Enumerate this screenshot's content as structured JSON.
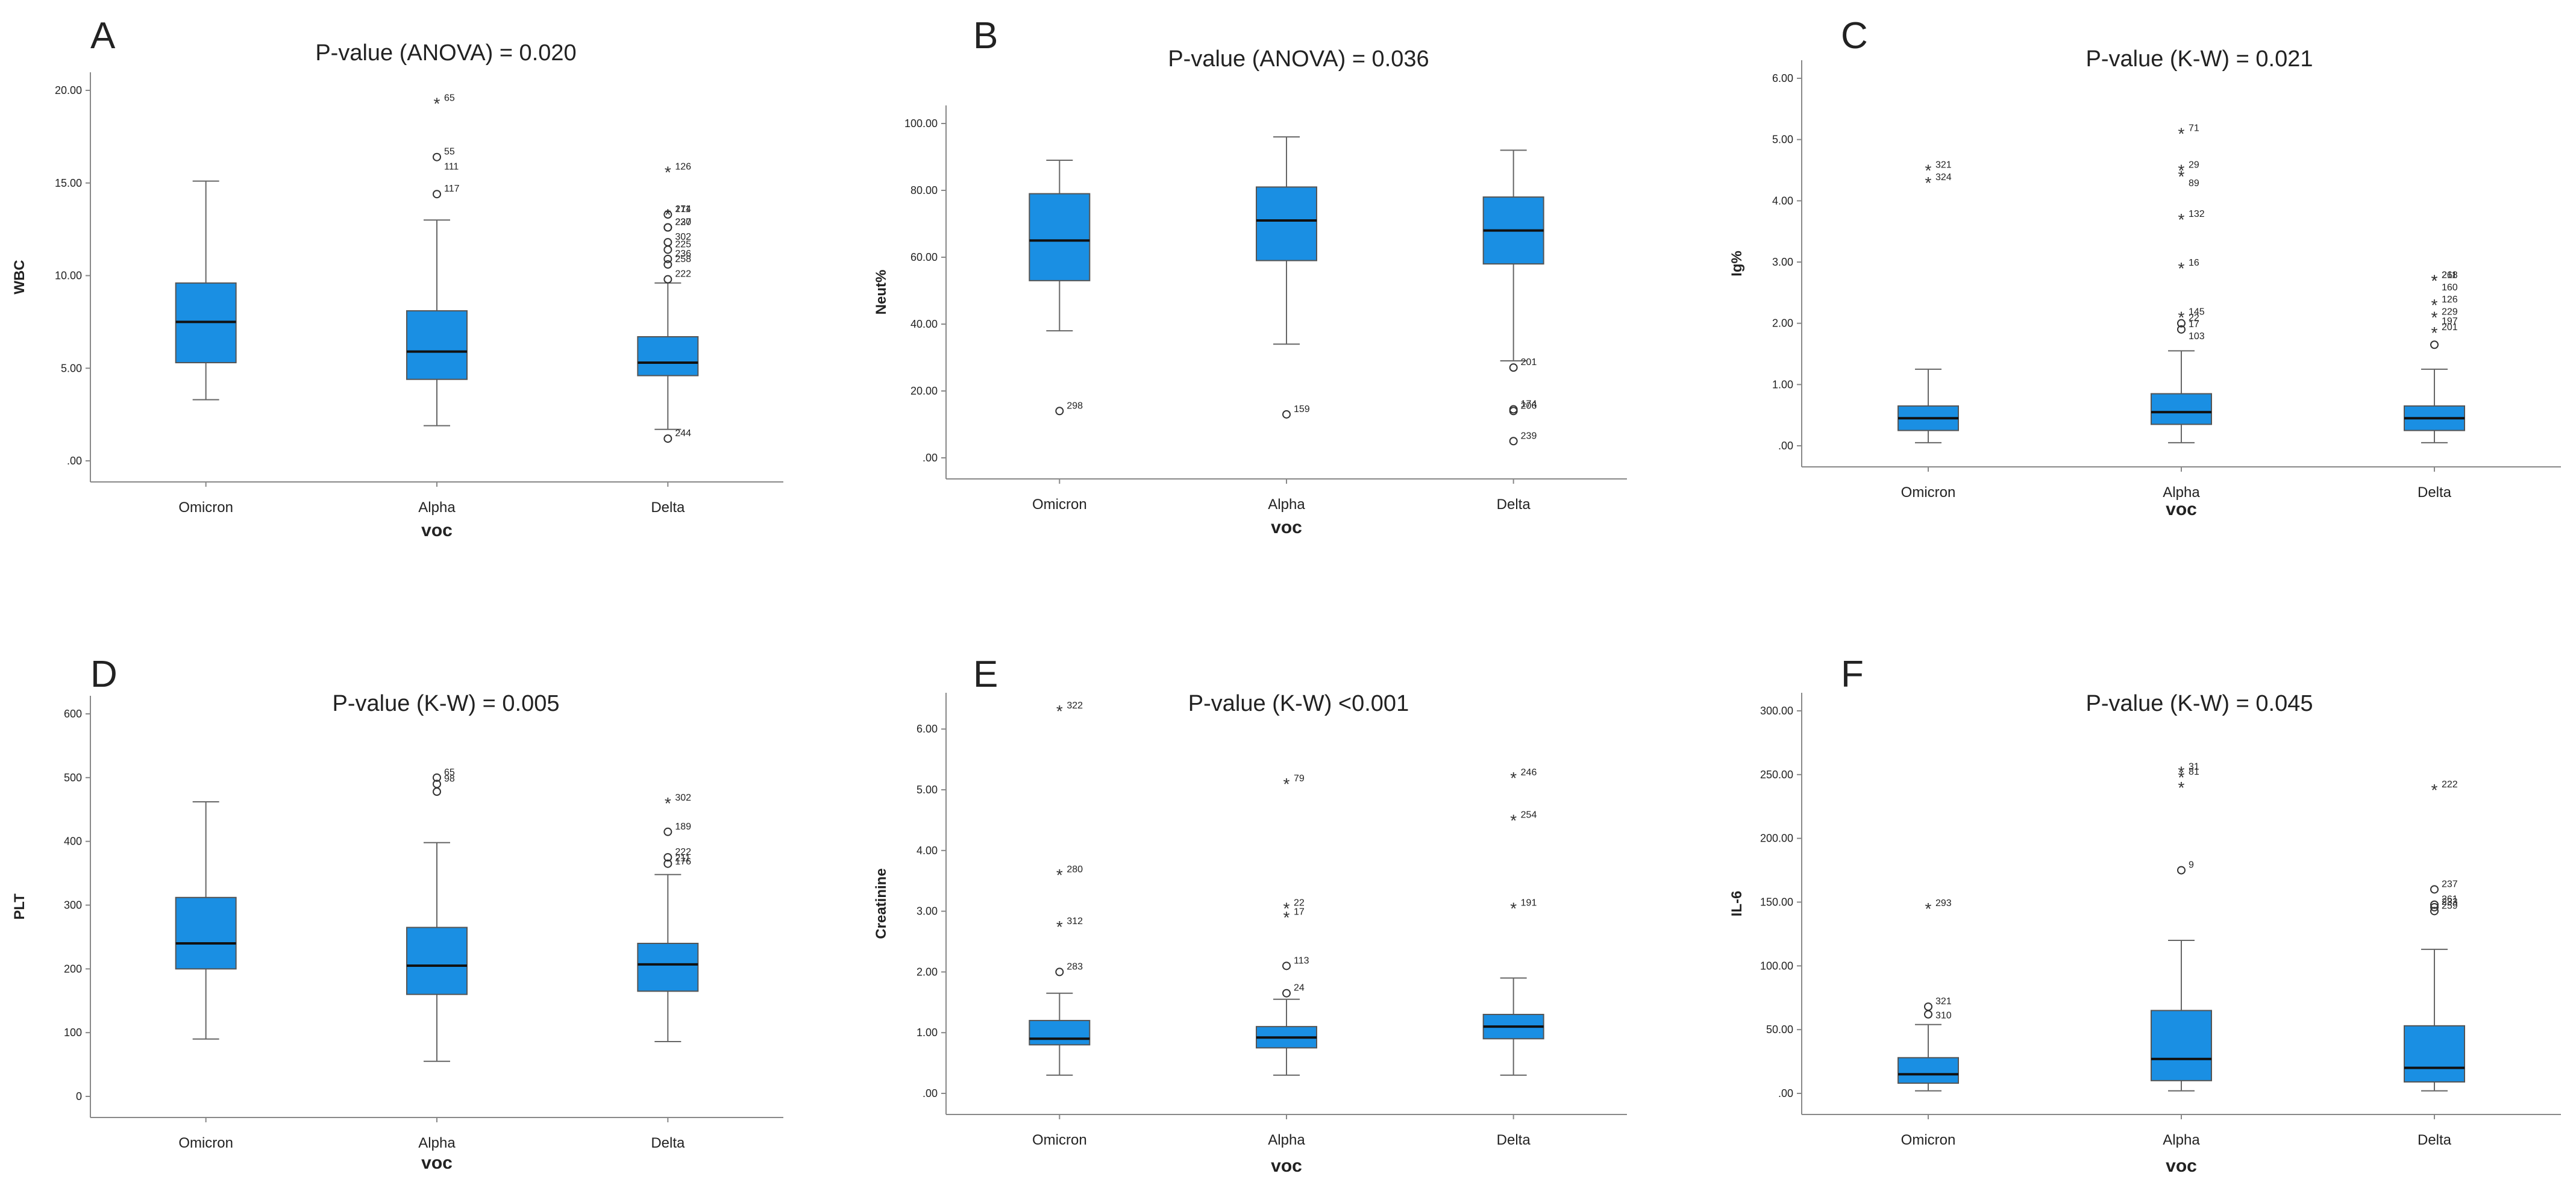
{
  "colors": {
    "box": "#1a8fe3",
    "axis": "#888888",
    "whisker": "#666666",
    "text": "#222222"
  },
  "chart_data": [
    {
      "id": "A",
      "type": "box",
      "title": "P-value (ANOVA) = 0.020",
      "xlabel": "voc",
      "ylabel": "WBC",
      "categories": [
        "Omicron",
        "Alpha",
        "Delta"
      ],
      "ylim": [
        0,
        20
      ],
      "ticks": [
        0,
        5,
        10,
        15,
        20
      ],
      "tick_labels": [
        ".00",
        "5.00",
        "10.00",
        "15.00",
        "20.00"
      ],
      "boxes": [
        {
          "low": 3.3,
          "q1": 5.3,
          "median": 7.5,
          "q3": 9.6,
          "high": 15.1
        },
        {
          "low": 1.9,
          "q1": 4.4,
          "median": 5.9,
          "q3": 8.1,
          "high": 13.0
        },
        {
          "low": 1.7,
          "q1": 4.6,
          "median": 5.3,
          "q3": 6.7,
          "high": 9.6
        }
      ],
      "outliers": [
        {
          "cat": 1,
          "value": 19.3,
          "label": "65",
          "marker": "star"
        },
        {
          "cat": 1,
          "value": 16.4,
          "label": "55",
          "marker": "circle"
        },
        {
          "cat": 1,
          "value": 15.6,
          "label": "111",
          "marker": "none"
        },
        {
          "cat": 1,
          "value": 14.4,
          "label": "117",
          "marker": "circle"
        },
        {
          "cat": 2,
          "value": 15.6,
          "label": "126",
          "marker": "star"
        },
        {
          "cat": 2,
          "value": 13.3,
          "label": "211",
          "marker": "circle"
        },
        {
          "cat": 2,
          "value": 13.3,
          "label": "174",
          "marker": "star"
        },
        {
          "cat": 2,
          "value": 12.6,
          "label": "220",
          "marker": "circle"
        },
        {
          "cat": 2,
          "value": 12.6,
          "label": "237",
          "marker": "circle"
        },
        {
          "cat": 2,
          "value": 11.8,
          "label": "302",
          "marker": "circle"
        },
        {
          "cat": 2,
          "value": 11.4,
          "label": "225",
          "marker": "circle"
        },
        {
          "cat": 2,
          "value": 10.9,
          "label": "236",
          "marker": "circle"
        },
        {
          "cat": 2,
          "value": 10.6,
          "label": "258",
          "marker": "circle"
        },
        {
          "cat": 2,
          "value": 9.8,
          "label": "222",
          "marker": "circle"
        },
        {
          "cat": 2,
          "value": 1.2,
          "label": "244",
          "marker": "circle"
        }
      ]
    },
    {
      "id": "B",
      "type": "box",
      "title": "P-value (ANOVA) = 0.036",
      "xlabel": "voc",
      "ylabel": "Neut%",
      "categories": [
        "Omicron",
        "Alpha",
        "Delta"
      ],
      "ylim": [
        0,
        100
      ],
      "ticks": [
        0,
        20,
        40,
        60,
        80,
        100
      ],
      "tick_labels": [
        ".00",
        "20.00",
        "40.00",
        "60.00",
        "80.00",
        "100.00"
      ],
      "boxes": [
        {
          "low": 38,
          "q1": 53,
          "median": 65,
          "q3": 79,
          "high": 89
        },
        {
          "low": 34,
          "q1": 59,
          "median": 71,
          "q3": 81,
          "high": 96
        },
        {
          "low": 29,
          "q1": 58,
          "median": 68,
          "q3": 78,
          "high": 92
        }
      ],
      "outliers": [
        {
          "cat": 0,
          "value": 14,
          "label": "298",
          "marker": "circle"
        },
        {
          "cat": 1,
          "value": 13,
          "label": "159",
          "marker": "circle"
        },
        {
          "cat": 2,
          "value": 27,
          "label": "201",
          "marker": "circle"
        },
        {
          "cat": 2,
          "value": 14,
          "label": "206",
          "marker": "circle"
        },
        {
          "cat": 2,
          "value": 14.5,
          "label": "174",
          "marker": "circle"
        },
        {
          "cat": 2,
          "value": 5,
          "label": "239",
          "marker": "circle"
        }
      ]
    },
    {
      "id": "C",
      "type": "box",
      "title": "P-value (K-W) = 0.021",
      "xlabel": "voc",
      "ylabel": "Ig%",
      "categories": [
        "Omicron",
        "Alpha",
        "Delta"
      ],
      "ylim": [
        0,
        6
      ],
      "ticks": [
        0,
        1,
        2,
        3,
        4,
        5,
        6
      ],
      "tick_labels": [
        ".00",
        "1.00",
        "2.00",
        "3.00",
        "4.00",
        "5.00",
        "6.00"
      ],
      "boxes": [
        {
          "low": 0.05,
          "q1": 0.25,
          "median": 0.45,
          "q3": 0.65,
          "high": 1.25
        },
        {
          "low": 0.05,
          "q1": 0.35,
          "median": 0.55,
          "q3": 0.85,
          "high": 1.55
        },
        {
          "low": 0.05,
          "q1": 0.25,
          "median": 0.45,
          "q3": 0.65,
          "high": 1.25
        }
      ],
      "outliers": [
        {
          "cat": 0,
          "value": 4.5,
          "label": "321",
          "marker": "star"
        },
        {
          "cat": 0,
          "value": 4.3,
          "label": "324",
          "marker": "star"
        },
        {
          "cat": 1,
          "value": 5.1,
          "label": "71",
          "marker": "star"
        },
        {
          "cat": 1,
          "value": 4.5,
          "label": "29",
          "marker": "star"
        },
        {
          "cat": 1,
          "value": 4.4,
          "label": "",
          "marker": "star"
        },
        {
          "cat": 1,
          "value": 4.2,
          "label": "89",
          "marker": "none"
        },
        {
          "cat": 1,
          "value": 3.7,
          "label": "132",
          "marker": "star"
        },
        {
          "cat": 1,
          "value": 2.9,
          "label": "16",
          "marker": "star"
        },
        {
          "cat": 1,
          "value": 2.1,
          "label": "145",
          "marker": "star"
        },
        {
          "cat": 1,
          "value": 2.0,
          "label": "22",
          "marker": "circle"
        },
        {
          "cat": 1,
          "value": 1.9,
          "label": "17",
          "marker": "circle"
        },
        {
          "cat": 1,
          "value": 1.7,
          "label": "103",
          "marker": "none"
        },
        {
          "cat": 2,
          "value": 2.7,
          "label": "211",
          "marker": "star"
        },
        {
          "cat": 2,
          "value": 2.7,
          "label": "268",
          "marker": "star"
        },
        {
          "cat": 2,
          "value": 2.5,
          "label": "160",
          "marker": "none"
        },
        {
          "cat": 2,
          "value": 2.3,
          "label": "126",
          "marker": "star"
        },
        {
          "cat": 2,
          "value": 2.1,
          "label": "229",
          "marker": "star"
        },
        {
          "cat": 2,
          "value": 1.95,
          "label": "197",
          "marker": "none"
        },
        {
          "cat": 2,
          "value": 1.85,
          "label": "201",
          "marker": "star"
        },
        {
          "cat": 2,
          "value": 1.65,
          "label": "",
          "marker": "circle"
        }
      ]
    },
    {
      "id": "D",
      "type": "box",
      "title": "P-value (K-W) = 0.005",
      "xlabel": "voc",
      "ylabel": "PLT",
      "categories": [
        "Omicron",
        "Alpha",
        "Delta"
      ],
      "ylim": [
        0,
        600
      ],
      "ticks": [
        0,
        100,
        200,
        300,
        400,
        500,
        600
      ],
      "tick_labels": [
        "0",
        "100",
        "200",
        "300",
        "400",
        "500",
        "600"
      ],
      "boxes": [
        {
          "low": 90,
          "q1": 200,
          "median": 240,
          "q3": 312,
          "high": 462
        },
        {
          "low": 55,
          "q1": 160,
          "median": 205,
          "q3": 265,
          "high": 398
        },
        {
          "low": 86,
          "q1": 165,
          "median": 207,
          "q3": 240,
          "high": 348
        }
      ],
      "outliers": [
        {
          "cat": 1,
          "value": 500,
          "label": "65",
          "marker": "circle"
        },
        {
          "cat": 1,
          "value": 490,
          "label": "98",
          "marker": "circle"
        },
        {
          "cat": 1,
          "value": 478,
          "label": "",
          "marker": "circle"
        },
        {
          "cat": 2,
          "value": 460,
          "label": "302",
          "marker": "star"
        },
        {
          "cat": 2,
          "value": 415,
          "label": "189",
          "marker": "circle"
        },
        {
          "cat": 2,
          "value": 375,
          "label": "222",
          "marker": "circle"
        },
        {
          "cat": 2,
          "value": 365,
          "label": "211",
          "marker": "circle"
        },
        {
          "cat": 2,
          "value": 360,
          "label": "176",
          "marker": "none"
        }
      ]
    },
    {
      "id": "E",
      "type": "box",
      "title": "P-value (K-W) <0.001",
      "xlabel": "voc",
      "ylabel": "Creatinine",
      "categories": [
        "Omicron",
        "Alpha",
        "Delta"
      ],
      "ylim": [
        0,
        6.3
      ],
      "ticks": [
        0,
        1,
        2,
        3,
        4,
        5,
        6
      ],
      "tick_labels": [
        ".00",
        "1.00",
        "2.00",
        "3.00",
        "4.00",
        "5.00",
        "6.00"
      ],
      "boxes": [
        {
          "low": 0.3,
          "q1": 0.8,
          "median": 0.9,
          "q3": 1.2,
          "high": 1.65
        },
        {
          "low": 0.3,
          "q1": 0.75,
          "median": 0.92,
          "q3": 1.1,
          "high": 1.55
        },
        {
          "low": 0.3,
          "q1": 0.9,
          "median": 1.1,
          "q3": 1.3,
          "high": 1.9
        }
      ],
      "outliers": [
        {
          "cat": 0,
          "value": 6.3,
          "label": "322",
          "marker": "star"
        },
        {
          "cat": 0,
          "value": 3.6,
          "label": "280",
          "marker": "star"
        },
        {
          "cat": 0,
          "value": 2.75,
          "label": "312",
          "marker": "star"
        },
        {
          "cat": 0,
          "value": 2.0,
          "label": "283",
          "marker": "circle"
        },
        {
          "cat": 1,
          "value": 5.1,
          "label": "79",
          "marker": "star"
        },
        {
          "cat": 1,
          "value": 3.05,
          "label": "22",
          "marker": "star"
        },
        {
          "cat": 1,
          "value": 2.9,
          "label": "17",
          "marker": "star"
        },
        {
          "cat": 1,
          "value": 2.1,
          "label": "113",
          "marker": "circle"
        },
        {
          "cat": 1,
          "value": 1.65,
          "label": "24",
          "marker": "circle"
        },
        {
          "cat": 2,
          "value": 5.2,
          "label": "246",
          "marker": "star"
        },
        {
          "cat": 2,
          "value": 4.5,
          "label": "254",
          "marker": "star"
        },
        {
          "cat": 2,
          "value": 3.05,
          "label": "191",
          "marker": "star"
        }
      ]
    },
    {
      "id": "F",
      "type": "box",
      "title": "P-value (K-W) = 0.045",
      "xlabel": "voc",
      "ylabel": "IL-6",
      "categories": [
        "Omicron",
        "Alpha",
        "Delta"
      ],
      "ylim": [
        0,
        300
      ],
      "ticks": [
        0,
        50,
        100,
        150,
        200,
        250,
        300
      ],
      "tick_labels": [
        ".00",
        "50.00",
        "100.00",
        "150.00",
        "200.00",
        "250.00",
        "300.00"
      ],
      "boxes": [
        {
          "low": 2,
          "q1": 8,
          "median": 15,
          "q3": 28,
          "high": 54
        },
        {
          "low": 2,
          "q1": 10,
          "median": 27,
          "q3": 65,
          "high": 120
        },
        {
          "low": 2,
          "q1": 9,
          "median": 20,
          "q3": 53,
          "high": 113
        }
      ],
      "outliers": [
        {
          "cat": 0,
          "value": 145,
          "label": "293",
          "marker": "star"
        },
        {
          "cat": 0,
          "value": 68,
          "label": "321",
          "marker": "circle"
        },
        {
          "cat": 0,
          "value": 62,
          "label": "",
          "marker": "circle"
        },
        {
          "cat": 0,
          "value": 57,
          "label": "310",
          "marker": "none"
        },
        {
          "cat": 1,
          "value": 252,
          "label": "31",
          "marker": "star"
        },
        {
          "cat": 1,
          "value": 248,
          "label": "81",
          "marker": "star"
        },
        {
          "cat": 1,
          "value": 240,
          "label": "",
          "marker": "star"
        },
        {
          "cat": 1,
          "value": 175,
          "label": "9",
          "marker": "circle"
        },
        {
          "cat": 2,
          "value": 238,
          "label": "222",
          "marker": "star"
        },
        {
          "cat": 2,
          "value": 160,
          "label": "237",
          "marker": "circle"
        },
        {
          "cat": 2,
          "value": 148,
          "label": "261",
          "marker": "circle"
        },
        {
          "cat": 2,
          "value": 146,
          "label": "233",
          "marker": "circle"
        },
        {
          "cat": 2,
          "value": 143,
          "label": "259",
          "marker": "circle"
        }
      ]
    }
  ]
}
